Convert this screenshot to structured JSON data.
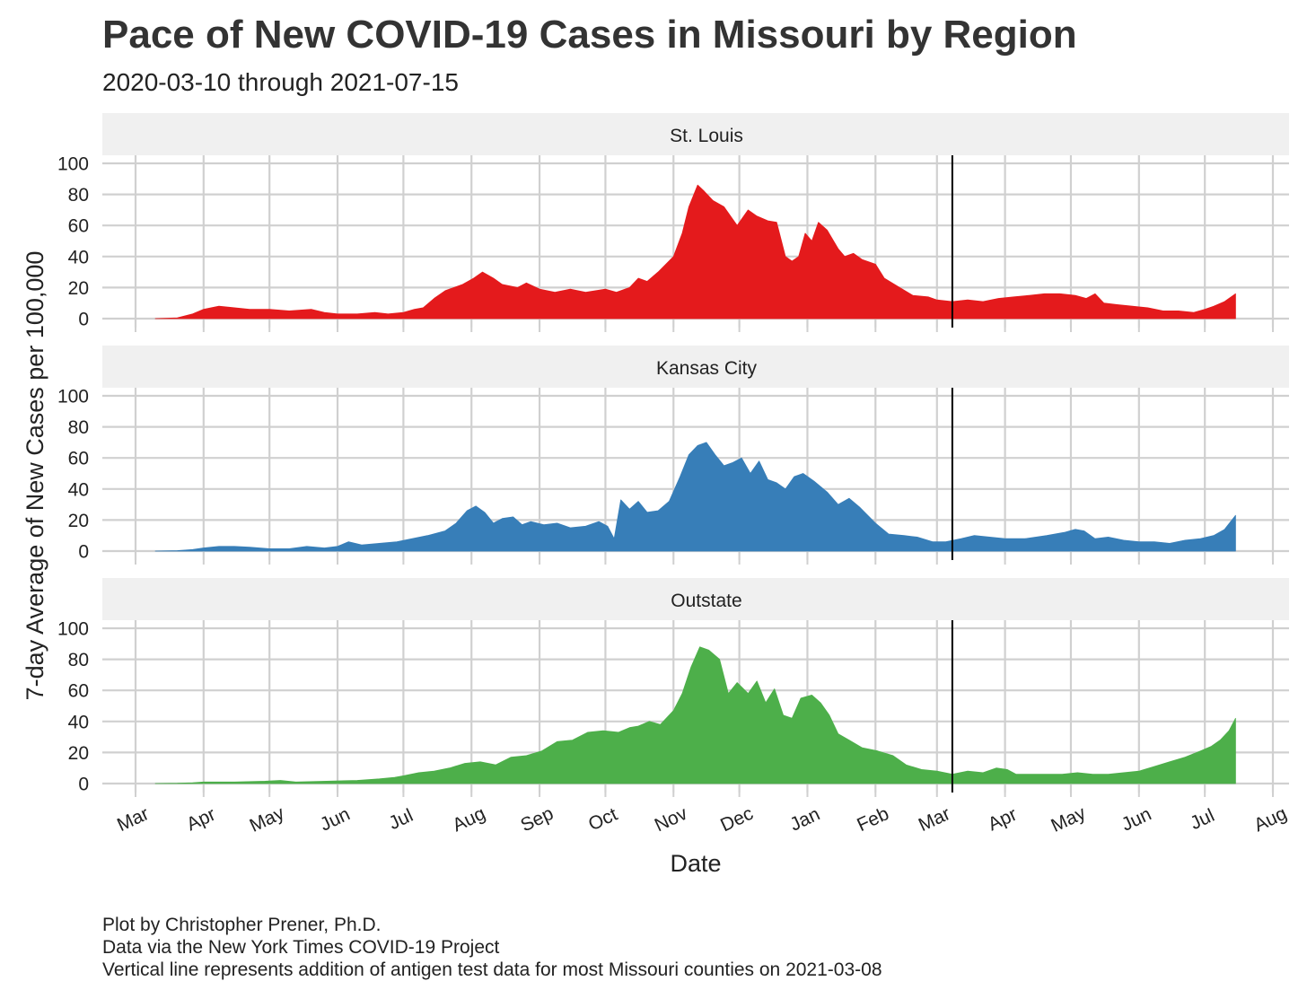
{
  "title": "Pace of New COVID-19 Cases in Missouri by Region",
  "subtitle": "2020-03-10 through 2021-07-15",
  "caption": [
    "Plot by Christopher Prener, Ph.D.",
    "Data via the New York Times COVID-19 Project",
    "Vertical line represents addition of antigen test data for most Missouri counties on 2021-03-08"
  ],
  "chart_data": {
    "type": "area",
    "xlabel": "Date",
    "ylabel": "7-day Average of New Cases per 100,000",
    "xlim": [
      "2020-03-01",
      "2021-08-01"
    ],
    "ylim": [
      0,
      100
    ],
    "yticks": [
      0,
      20,
      40,
      60,
      80,
      100
    ],
    "xticks": [
      {
        "date": "2020-03-01",
        "label": "Mar"
      },
      {
        "date": "2020-04-01",
        "label": "Apr"
      },
      {
        "date": "2020-05-01",
        "label": "May"
      },
      {
        "date": "2020-06-01",
        "label": "Jun"
      },
      {
        "date": "2020-07-01",
        "label": "Jul"
      },
      {
        "date": "2020-08-01",
        "label": "Aug"
      },
      {
        "date": "2020-09-01",
        "label": "Sep"
      },
      {
        "date": "2020-10-01",
        "label": "Oct"
      },
      {
        "date": "2020-11-01",
        "label": "Nov"
      },
      {
        "date": "2020-12-01",
        "label": "Dec"
      },
      {
        "date": "2021-01-01",
        "label": "Jan"
      },
      {
        "date": "2021-02-01",
        "label": "Feb"
      },
      {
        "date": "2021-03-01",
        "label": "Mar"
      },
      {
        "date": "2021-04-01",
        "label": "Apr"
      },
      {
        "date": "2021-05-01",
        "label": "May"
      },
      {
        "date": "2021-06-01",
        "label": "Jun"
      },
      {
        "date": "2021-07-01",
        "label": "Jul"
      },
      {
        "date": "2021-08-01",
        "label": "Aug"
      }
    ],
    "vline": "2021-03-08",
    "grid": true,
    "legend": "none",
    "panels": [
      {
        "name": "St. Louis",
        "color": "#e41a1c",
        "points": [
          [
            "2020-03-10",
            0
          ],
          [
            "2020-03-20",
            0.5
          ],
          [
            "2020-03-27",
            3
          ],
          [
            "2020-04-01",
            6
          ],
          [
            "2020-04-08",
            8
          ],
          [
            "2020-04-15",
            7
          ],
          [
            "2020-04-22",
            6
          ],
          [
            "2020-05-01",
            6
          ],
          [
            "2020-05-10",
            5
          ],
          [
            "2020-05-20",
            6
          ],
          [
            "2020-05-26",
            4
          ],
          [
            "2020-06-01",
            3
          ],
          [
            "2020-06-10",
            3
          ],
          [
            "2020-06-18",
            4
          ],
          [
            "2020-06-24",
            3
          ],
          [
            "2020-07-01",
            4
          ],
          [
            "2020-07-06",
            6
          ],
          [
            "2020-07-10",
            7
          ],
          [
            "2020-07-15",
            13
          ],
          [
            "2020-07-20",
            18
          ],
          [
            "2020-07-28",
            22
          ],
          [
            "2020-08-02",
            26
          ],
          [
            "2020-08-06",
            30
          ],
          [
            "2020-08-11",
            26
          ],
          [
            "2020-08-15",
            22
          ],
          [
            "2020-08-22",
            20
          ],
          [
            "2020-08-26",
            23
          ],
          [
            "2020-09-01",
            19
          ],
          [
            "2020-09-08",
            17
          ],
          [
            "2020-09-15",
            19
          ],
          [
            "2020-09-22",
            17
          ],
          [
            "2020-10-01",
            19
          ],
          [
            "2020-10-06",
            17
          ],
          [
            "2020-10-12",
            20
          ],
          [
            "2020-10-16",
            26
          ],
          [
            "2020-10-20",
            24
          ],
          [
            "2020-10-25",
            30
          ],
          [
            "2020-11-01",
            40
          ],
          [
            "2020-11-05",
            55
          ],
          [
            "2020-11-08",
            72
          ],
          [
            "2020-11-12",
            86
          ],
          [
            "2020-11-15",
            82
          ],
          [
            "2020-11-19",
            76
          ],
          [
            "2020-11-24",
            72
          ],
          [
            "2020-11-30",
            60
          ],
          [
            "2020-12-05",
            70
          ],
          [
            "2020-12-09",
            66
          ],
          [
            "2020-12-14",
            63
          ],
          [
            "2020-12-18",
            62
          ],
          [
            "2020-12-22",
            40
          ],
          [
            "2020-12-25",
            37
          ],
          [
            "2020-12-28",
            40
          ],
          [
            "2020-12-31",
            55
          ],
          [
            "2021-01-03",
            50
          ],
          [
            "2021-01-06",
            62
          ],
          [
            "2021-01-10",
            57
          ],
          [
            "2021-01-15",
            45
          ],
          [
            "2021-01-18",
            40
          ],
          [
            "2021-01-22",
            42
          ],
          [
            "2021-01-26",
            38
          ],
          [
            "2021-02-01",
            35
          ],
          [
            "2021-02-05",
            26
          ],
          [
            "2021-02-12",
            20
          ],
          [
            "2021-02-18",
            15
          ],
          [
            "2021-02-25",
            14
          ],
          [
            "2021-03-01",
            12
          ],
          [
            "2021-03-08",
            11
          ],
          [
            "2021-03-15",
            12
          ],
          [
            "2021-03-22",
            11
          ],
          [
            "2021-03-29",
            13
          ],
          [
            "2021-04-05",
            14
          ],
          [
            "2021-04-12",
            15
          ],
          [
            "2021-04-19",
            16
          ],
          [
            "2021-04-26",
            16
          ],
          [
            "2021-05-03",
            15
          ],
          [
            "2021-05-08",
            13
          ],
          [
            "2021-05-12",
            16
          ],
          [
            "2021-05-16",
            10
          ],
          [
            "2021-05-22",
            9
          ],
          [
            "2021-05-29",
            8
          ],
          [
            "2021-06-05",
            7
          ],
          [
            "2021-06-12",
            5
          ],
          [
            "2021-06-19",
            5
          ],
          [
            "2021-06-26",
            4
          ],
          [
            "2021-07-01",
            6
          ],
          [
            "2021-07-05",
            8
          ],
          [
            "2021-07-10",
            11
          ],
          [
            "2021-07-15",
            16
          ]
        ]
      },
      {
        "name": "Kansas City",
        "color": "#377eb8",
        "points": [
          [
            "2020-03-10",
            0
          ],
          [
            "2020-03-20",
            0.3
          ],
          [
            "2020-03-27",
            1
          ],
          [
            "2020-04-01",
            2
          ],
          [
            "2020-04-08",
            3
          ],
          [
            "2020-04-15",
            3
          ],
          [
            "2020-04-22",
            2.5
          ],
          [
            "2020-05-01",
            1.5
          ],
          [
            "2020-05-10",
            1.5
          ],
          [
            "2020-05-18",
            3
          ],
          [
            "2020-05-26",
            2
          ],
          [
            "2020-06-01",
            3
          ],
          [
            "2020-06-06",
            6
          ],
          [
            "2020-06-12",
            4
          ],
          [
            "2020-06-20",
            5
          ],
          [
            "2020-06-28",
            6
          ],
          [
            "2020-07-05",
            8
          ],
          [
            "2020-07-12",
            10
          ],
          [
            "2020-07-20",
            13
          ],
          [
            "2020-07-25",
            18
          ],
          [
            "2020-07-30",
            26
          ],
          [
            "2020-08-03",
            29
          ],
          [
            "2020-08-07",
            25
          ],
          [
            "2020-08-11",
            18
          ],
          [
            "2020-08-15",
            21
          ],
          [
            "2020-08-20",
            22
          ],
          [
            "2020-08-24",
            17
          ],
          [
            "2020-08-28",
            19
          ],
          [
            "2020-09-03",
            17
          ],
          [
            "2020-09-09",
            18
          ],
          [
            "2020-09-15",
            15
          ],
          [
            "2020-09-22",
            16
          ],
          [
            "2020-09-28",
            19
          ],
          [
            "2020-10-02",
            16
          ],
          [
            "2020-10-05",
            8
          ],
          [
            "2020-10-08",
            33
          ],
          [
            "2020-10-12",
            27
          ],
          [
            "2020-10-16",
            32
          ],
          [
            "2020-10-20",
            25
          ],
          [
            "2020-10-25",
            26
          ],
          [
            "2020-10-30",
            32
          ],
          [
            "2020-11-04",
            48
          ],
          [
            "2020-11-08",
            62
          ],
          [
            "2020-11-12",
            68
          ],
          [
            "2020-11-16",
            70
          ],
          [
            "2020-11-20",
            62
          ],
          [
            "2020-11-24",
            55
          ],
          [
            "2020-11-28",
            57
          ],
          [
            "2020-12-02",
            60
          ],
          [
            "2020-12-06",
            50
          ],
          [
            "2020-12-10",
            58
          ],
          [
            "2020-12-14",
            46
          ],
          [
            "2020-12-18",
            44
          ],
          [
            "2020-12-22",
            40
          ],
          [
            "2020-12-26",
            48
          ],
          [
            "2020-12-30",
            50
          ],
          [
            "2021-01-04",
            45
          ],
          [
            "2021-01-10",
            38
          ],
          [
            "2021-01-15",
            30
          ],
          [
            "2021-01-20",
            34
          ],
          [
            "2021-01-25",
            28
          ],
          [
            "2021-02-01",
            18
          ],
          [
            "2021-02-07",
            11
          ],
          [
            "2021-02-14",
            10
          ],
          [
            "2021-02-20",
            9
          ],
          [
            "2021-02-27",
            6
          ],
          [
            "2021-03-05",
            6
          ],
          [
            "2021-03-12",
            8
          ],
          [
            "2021-03-18",
            10
          ],
          [
            "2021-03-25",
            9
          ],
          [
            "2021-04-01",
            8
          ],
          [
            "2021-04-10",
            8
          ],
          [
            "2021-04-20",
            10
          ],
          [
            "2021-04-28",
            12
          ],
          [
            "2021-05-03",
            14
          ],
          [
            "2021-05-07",
            13
          ],
          [
            "2021-05-12",
            8
          ],
          [
            "2021-05-18",
            9
          ],
          [
            "2021-05-25",
            7
          ],
          [
            "2021-06-01",
            6
          ],
          [
            "2021-06-08",
            6
          ],
          [
            "2021-06-15",
            5
          ],
          [
            "2021-06-22",
            7
          ],
          [
            "2021-06-29",
            8
          ],
          [
            "2021-07-05",
            10
          ],
          [
            "2021-07-10",
            14
          ],
          [
            "2021-07-15",
            23
          ]
        ]
      },
      {
        "name": "Outstate",
        "color": "#4daf4a",
        "points": [
          [
            "2020-03-10",
            0
          ],
          [
            "2020-03-20",
            0.2
          ],
          [
            "2020-03-27",
            0.5
          ],
          [
            "2020-04-01",
            1
          ],
          [
            "2020-04-15",
            1
          ],
          [
            "2020-04-29",
            1.5
          ],
          [
            "2020-05-06",
            2
          ],
          [
            "2020-05-13",
            1
          ],
          [
            "2020-05-27",
            1.5
          ],
          [
            "2020-06-10",
            2
          ],
          [
            "2020-06-20",
            3
          ],
          [
            "2020-06-27",
            4
          ],
          [
            "2020-07-01",
            5
          ],
          [
            "2020-07-08",
            7
          ],
          [
            "2020-07-15",
            8
          ],
          [
            "2020-07-22",
            10
          ],
          [
            "2020-07-29",
            13
          ],
          [
            "2020-08-05",
            14
          ],
          [
            "2020-08-12",
            12
          ],
          [
            "2020-08-19",
            17
          ],
          [
            "2020-08-26",
            18
          ],
          [
            "2020-09-02",
            21
          ],
          [
            "2020-09-09",
            27
          ],
          [
            "2020-09-16",
            28
          ],
          [
            "2020-09-23",
            33
          ],
          [
            "2020-09-30",
            34
          ],
          [
            "2020-10-07",
            33
          ],
          [
            "2020-10-12",
            36
          ],
          [
            "2020-10-16",
            37
          ],
          [
            "2020-10-21",
            40
          ],
          [
            "2020-10-26",
            38
          ],
          [
            "2020-11-01",
            47
          ],
          [
            "2020-11-05",
            58
          ],
          [
            "2020-11-09",
            75
          ],
          [
            "2020-11-13",
            88
          ],
          [
            "2020-11-17",
            86
          ],
          [
            "2020-11-22",
            80
          ],
          [
            "2020-11-26",
            58
          ],
          [
            "2020-11-30",
            65
          ],
          [
            "2020-12-05",
            58
          ],
          [
            "2020-12-09",
            66
          ],
          [
            "2020-12-13",
            52
          ],
          [
            "2020-12-17",
            61
          ],
          [
            "2020-12-21",
            44
          ],
          [
            "2020-12-25",
            42
          ],
          [
            "2020-12-29",
            55
          ],
          [
            "2021-01-03",
            57
          ],
          [
            "2021-01-07",
            52
          ],
          [
            "2021-01-11",
            44
          ],
          [
            "2021-01-15",
            32
          ],
          [
            "2021-01-20",
            28
          ],
          [
            "2021-01-26",
            23
          ],
          [
            "2021-02-02",
            21
          ],
          [
            "2021-02-09",
            18
          ],
          [
            "2021-02-15",
            12
          ],
          [
            "2021-02-22",
            9
          ],
          [
            "2021-03-01",
            8
          ],
          [
            "2021-03-08",
            6
          ],
          [
            "2021-03-15",
            8
          ],
          [
            "2021-03-22",
            7
          ],
          [
            "2021-03-28",
            10
          ],
          [
            "2021-04-02",
            9
          ],
          [
            "2021-04-06",
            6
          ],
          [
            "2021-04-13",
            6
          ],
          [
            "2021-04-20",
            6
          ],
          [
            "2021-04-27",
            6
          ],
          [
            "2021-05-04",
            7
          ],
          [
            "2021-05-11",
            6
          ],
          [
            "2021-05-18",
            6
          ],
          [
            "2021-05-25",
            7
          ],
          [
            "2021-06-01",
            8
          ],
          [
            "2021-06-08",
            11
          ],
          [
            "2021-06-15",
            14
          ],
          [
            "2021-06-22",
            17
          ],
          [
            "2021-06-29",
            21
          ],
          [
            "2021-07-04",
            24
          ],
          [
            "2021-07-08",
            28
          ],
          [
            "2021-07-12",
            34
          ],
          [
            "2021-07-15",
            42
          ]
        ]
      }
    ]
  }
}
